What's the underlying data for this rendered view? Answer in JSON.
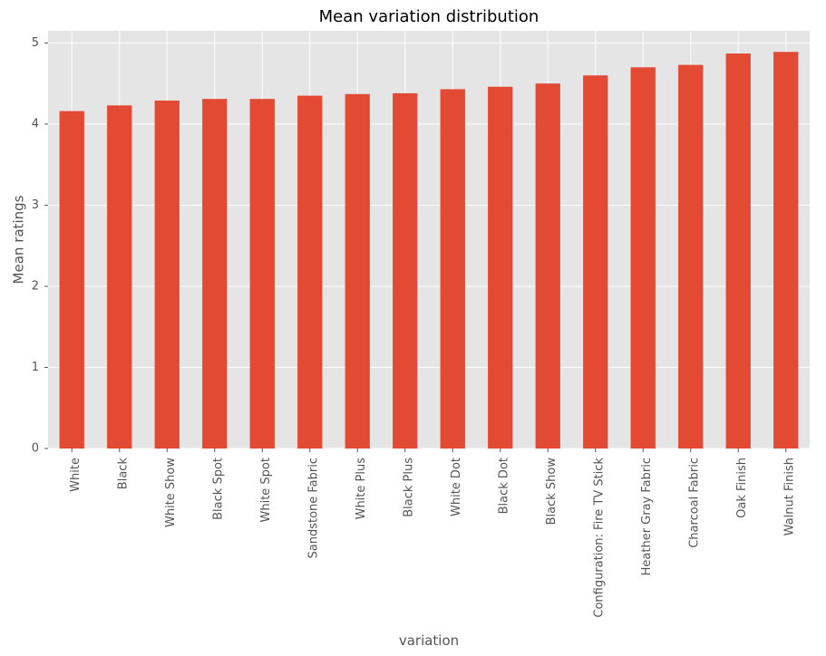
{
  "chart_data": {
    "type": "bar",
    "title": "Mean variation distribution",
    "xlabel": "variation",
    "ylabel": "Mean ratings",
    "categories": [
      "White",
      "Black",
      "White  Show",
      "Black  Spot",
      "White  Spot",
      "Sandstone Fabric",
      "White  Plus",
      "Black  Plus",
      "White  Dot",
      "Black  Dot",
      "Black  Show",
      "Configuration: Fire TV Stick",
      "Heather Gray Fabric",
      "Charcoal Fabric",
      "Oak Finish",
      "Walnut Finish"
    ],
    "values": [
      4.16,
      4.23,
      4.29,
      4.31,
      4.31,
      4.35,
      4.37,
      4.38,
      4.43,
      4.46,
      4.5,
      4.6,
      4.7,
      4.73,
      4.87,
      4.89
    ],
    "ylim": [
      0,
      5.15
    ],
    "yticks": [
      0,
      1,
      2,
      3,
      4,
      5
    ],
    "grid": true,
    "colors": {
      "bar": "#E24A33",
      "plot_background": "#E5E5E5",
      "grid": "#FFFFFF",
      "tick_text": "#555555"
    }
  }
}
